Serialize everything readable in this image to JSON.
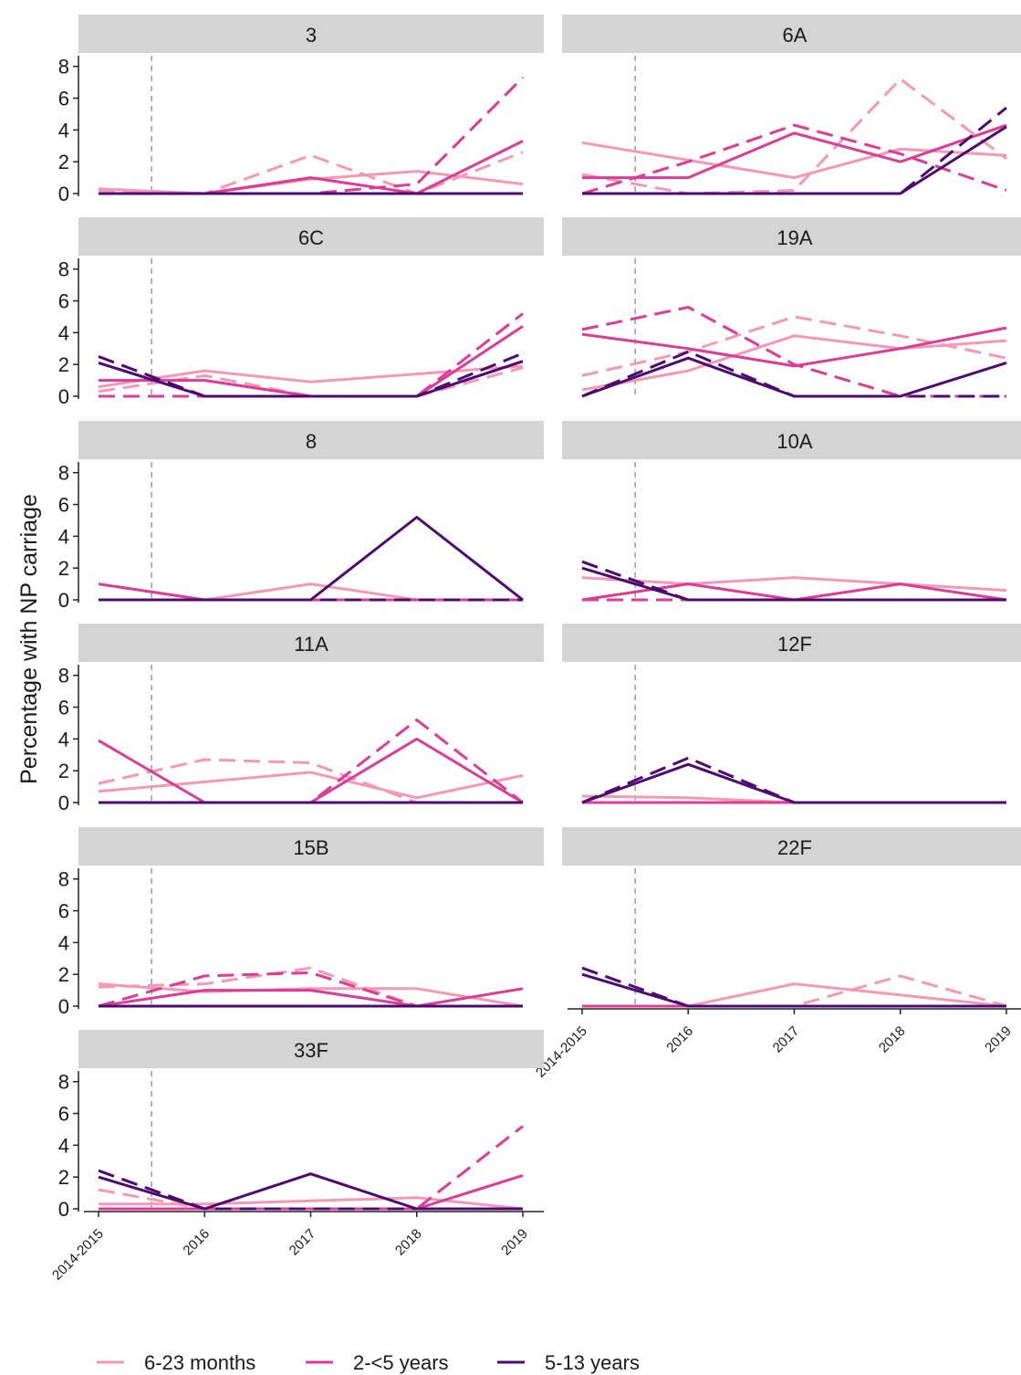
{
  "chart_data": {
    "type": "line",
    "ylabel": "Percentage with NP carriage",
    "x": [
      "2014-2015",
      "2016",
      "2017",
      "2018",
      "2019"
    ],
    "yticks": [
      0,
      2,
      4,
      6,
      8
    ],
    "ylim": [
      0,
      8.5
    ],
    "vline_x": 0.5,
    "colors": {
      "6-23 months": "#f598b5",
      "2-<5 years": "#de3a97",
      "5-13 years": "#4e0a70"
    },
    "legend": {
      "position": "bottom",
      "entries": [
        "6-23 months",
        "2-<5 years",
        "5-13 years"
      ]
    },
    "panels": [
      {
        "title": "3",
        "observed": {
          "6-23 months": [
            0.3,
            0,
            0.9,
            1.4,
            0.6
          ],
          "2-<5 years": [
            0,
            0,
            1.0,
            0,
            3.3
          ],
          "5-13 years": [
            0,
            0,
            0,
            0,
            0
          ]
        },
        "fitted": {
          "6-23 months": [
            0.2,
            0,
            2.4,
            0,
            2.6
          ],
          "2-<5 years": [
            0,
            0,
            0,
            0.6,
            7.3
          ],
          "5-13 years": [
            0,
            0,
            0,
            0,
            0
          ]
        }
      },
      {
        "title": "6A",
        "observed": {
          "6-23 months": [
            3.2,
            2.1,
            1.0,
            2.8,
            2.4
          ],
          "2-<5 years": [
            1.0,
            1.0,
            3.8,
            2.0,
            4.3
          ],
          "5-13 years": [
            0,
            0,
            0,
            0,
            4.2
          ]
        },
        "fitted": {
          "6-23 months": [
            1.2,
            0,
            0.2,
            7.2,
            2.2
          ],
          "2-<5 years": [
            0,
            2.0,
            4.3,
            2.5,
            0.2
          ],
          "5-13 years": [
            0,
            0,
            0,
            0,
            5.4
          ]
        }
      },
      {
        "title": "6C",
        "observed": {
          "6-23 months": [
            0.6,
            1.6,
            0.9,
            1.4,
            1.9
          ],
          "2-<5 years": [
            1.0,
            1.0,
            0,
            0,
            4.4
          ],
          "5-13 years": [
            2.1,
            0,
            0,
            0,
            2.2
          ]
        },
        "fitted": {
          "6-23 months": [
            0.3,
            1.3,
            0,
            0,
            1.8
          ],
          "2-<5 years": [
            0,
            0,
            0,
            0,
            5.2
          ],
          "5-13 years": [
            2.5,
            0,
            0,
            0,
            2.7
          ]
        }
      },
      {
        "title": "19A",
        "observed": {
          "6-23 months": [
            0.4,
            1.6,
            3.8,
            3.0,
            3.5
          ],
          "2-<5 years": [
            3.9,
            3.0,
            1.9,
            3.0,
            4.3
          ],
          "5-13 years": [
            0,
            2.4,
            0,
            0,
            2.1
          ]
        },
        "fitted": {
          "6-23 months": [
            1.3,
            2.8,
            5.0,
            3.8,
            2.4
          ],
          "2-<5 years": [
            4.2,
            5.6,
            2.0,
            0,
            0
          ],
          "5-13 years": [
            0,
            2.8,
            0,
            0,
            0
          ]
        }
      },
      {
        "title": "8",
        "observed": {
          "6-23 months": [
            0,
            0,
            1.0,
            0,
            0
          ],
          "2-<5 years": [
            1.0,
            0,
            0,
            0,
            0
          ],
          "5-13 years": [
            0,
            0,
            0,
            5.2,
            0
          ]
        },
        "fitted": {
          "6-23 months": [
            0,
            0,
            0,
            0,
            0
          ],
          "2-<5 years": [
            0,
            0,
            0,
            0,
            0
          ],
          "5-13 years": [
            0,
            0,
            0,
            0,
            0
          ]
        }
      },
      {
        "title": "10A",
        "observed": {
          "6-23 months": [
            1.4,
            1.0,
            1.4,
            1.0,
            0.6
          ],
          "2-<5 years": [
            0,
            1.0,
            0,
            1.0,
            0
          ],
          "5-13 years": [
            2.0,
            0,
            0,
            0,
            0
          ]
        },
        "fitted": {
          "6-23 months": [
            0,
            0,
            0,
            0,
            0
          ],
          "2-<5 years": [
            0,
            0,
            0,
            0,
            0
          ],
          "5-13 years": [
            2.4,
            0,
            0,
            0,
            0
          ]
        }
      },
      {
        "title": "11A",
        "observed": {
          "6-23 months": [
            0.7,
            1.3,
            1.9,
            0.3,
            1.7
          ],
          "2-<5 years": [
            3.9,
            0,
            0,
            4.0,
            0
          ],
          "5-13 years": [
            0,
            0,
            0,
            0,
            0
          ]
        },
        "fitted": {
          "6-23 months": [
            1.2,
            2.7,
            2.5,
            0,
            0
          ],
          "2-<5 years": [
            0,
            0,
            0,
            5.2,
            0
          ],
          "5-13 years": [
            0,
            0,
            0,
            0,
            0
          ]
        }
      },
      {
        "title": "12F",
        "observed": {
          "6-23 months": [
            0.4,
            0.3,
            0,
            0,
            0
          ],
          "2-<5 years": [
            0,
            0,
            0,
            0,
            0
          ],
          "5-13 years": [
            0,
            2.4,
            0,
            0,
            0
          ]
        },
        "fitted": {
          "6-23 months": [
            0,
            0,
            0,
            0,
            0
          ],
          "2-<5 years": [
            0,
            0,
            0,
            0,
            0
          ],
          "5-13 years": [
            0,
            2.8,
            0,
            0,
            0
          ]
        }
      },
      {
        "title": "15B",
        "observed": {
          "6-23 months": [
            1.4,
            0.9,
            1.1,
            1.1,
            0
          ],
          "2-<5 years": [
            0,
            1.0,
            1.0,
            0,
            1.1
          ],
          "5-13 years": [
            0,
            0,
            0,
            0,
            0
          ]
        },
        "fitted": {
          "6-23 months": [
            1.2,
            1.4,
            2.4,
            0,
            0
          ],
          "2-<5 years": [
            0,
            1.9,
            2.1,
            0,
            0
          ],
          "5-13 years": [
            0,
            0,
            0,
            0,
            0
          ]
        }
      },
      {
        "title": "22F",
        "observed": {
          "6-23 months": [
            0,
            0,
            1.4,
            0.7,
            0
          ],
          "2-<5 years": [
            0,
            0,
            0,
            0,
            0
          ],
          "5-13 years": [
            2.0,
            0,
            0,
            0,
            0
          ]
        },
        "fitted": {
          "6-23 months": [
            0,
            0,
            0,
            1.9,
            0
          ],
          "2-<5 years": [
            0,
            0,
            0,
            0,
            0
          ],
          "5-13 years": [
            2.4,
            0,
            0,
            0,
            0
          ]
        }
      },
      {
        "title": "33F",
        "observed": {
          "6-23 months": [
            0.3,
            0.3,
            0.5,
            0.7,
            0
          ],
          "2-<5 years": [
            0,
            0,
            0,
            0,
            2.1
          ],
          "5-13 years": [
            2.0,
            0,
            2.2,
            0,
            0
          ]
        },
        "fitted": {
          "6-23 months": [
            1.2,
            0,
            0,
            0,
            0
          ],
          "2-<5 years": [
            0,
            0,
            0,
            0,
            5.2
          ],
          "5-13 years": [
            2.4,
            0,
            0,
            0,
            0
          ]
        }
      }
    ]
  }
}
